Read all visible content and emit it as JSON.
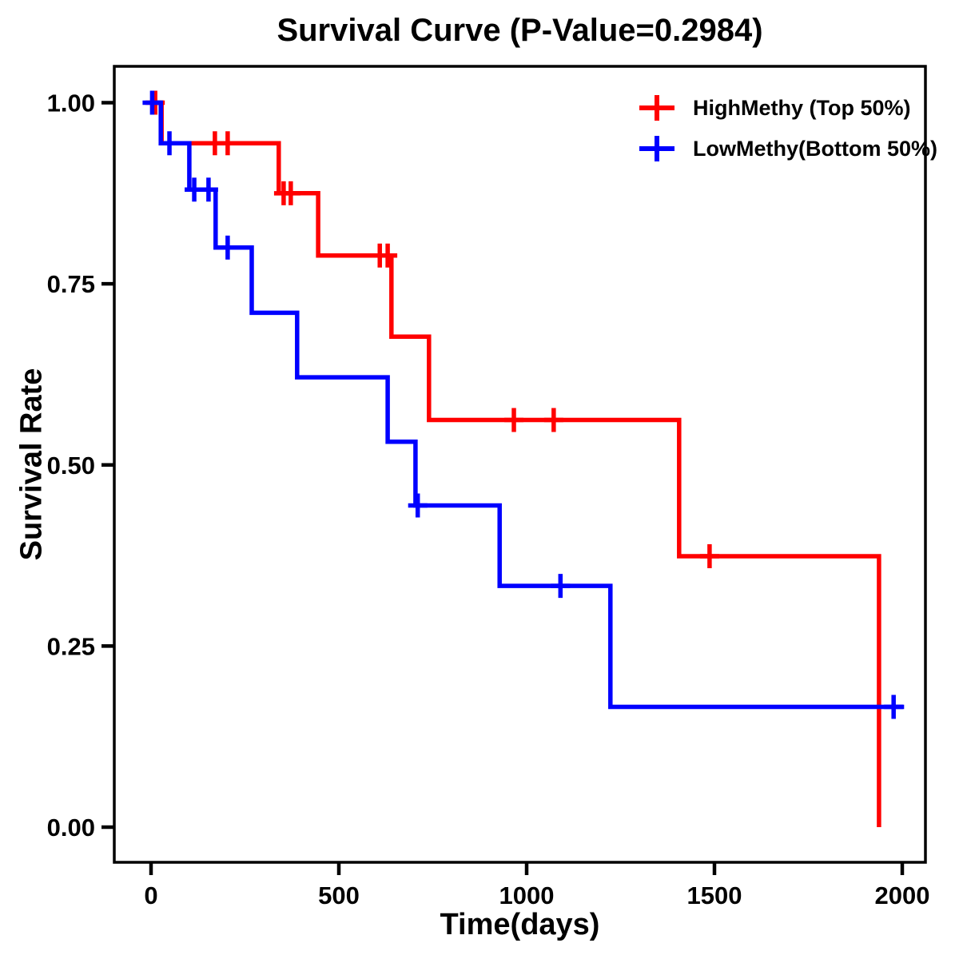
{
  "title": "Survival Curve (P-Value=0.2984)",
  "p_value": "0.2984",
  "chart_data": {
    "type": "line",
    "subtype": "kaplan-meier-step-curves",
    "title": "Survival Curve (P-Value=0.2984)",
    "xlabel": "Time(days)",
    "ylabel": "Survival Rate",
    "xlim": [
      0,
      2000
    ],
    "ylim": [
      0.0,
      1.0
    ],
    "x_ticks": [
      0,
      500,
      1000,
      1500,
      2000
    ],
    "y_ticks": [
      {
        "value": 0.0,
        "label": "0.00"
      },
      {
        "value": 0.25,
        "label": "0.25"
      },
      {
        "value": 0.5,
        "label": "0.50"
      },
      {
        "value": 0.75,
        "label": "0.75"
      },
      {
        "value": 1.0,
        "label": "1.00"
      }
    ],
    "grid": false,
    "legend_position": "top-right",
    "frame_color": "#000000",
    "background_color": "#ffffff",
    "series": [
      {
        "name": "HighMethy (Top 50%)",
        "color": "#ff0000",
        "marker": "plus-censor",
        "steps": [
          [
            0,
            1.0
          ],
          [
            28,
            1.0
          ],
          [
            28,
            0.944
          ],
          [
            340,
            0.944
          ],
          [
            340,
            0.875
          ],
          [
            445,
            0.875
          ],
          [
            445,
            0.789
          ],
          [
            640,
            0.789
          ],
          [
            640,
            0.677
          ],
          [
            740,
            0.677
          ],
          [
            740,
            0.562
          ],
          [
            1406,
            0.562
          ],
          [
            1406,
            0.374
          ],
          [
            1938,
            0.374
          ],
          [
            1938,
            0.0
          ]
        ],
        "censor_marks": [
          [
            11,
            1.0
          ],
          [
            170,
            0.944
          ],
          [
            204,
            0.944
          ],
          [
            353,
            0.875
          ],
          [
            372,
            0.875
          ],
          [
            609,
            0.789
          ],
          [
            630,
            0.789
          ],
          [
            966,
            0.562
          ],
          [
            1072,
            0.562
          ],
          [
            1487,
            0.374
          ]
        ]
      },
      {
        "name": "LowMethy(Bottom 50%)",
        "color": "#0000ff",
        "marker": "plus-censor",
        "steps": [
          [
            0,
            1.0
          ],
          [
            26,
            1.0
          ],
          [
            26,
            0.944
          ],
          [
            102,
            0.944
          ],
          [
            102,
            0.88
          ],
          [
            172,
            0.88
          ],
          [
            172,
            0.8
          ],
          [
            268,
            0.8
          ],
          [
            268,
            0.71
          ],
          [
            389,
            0.71
          ],
          [
            389,
            0.621
          ],
          [
            630,
            0.621
          ],
          [
            630,
            0.532
          ],
          [
            704,
            0.532
          ],
          [
            704,
            0.444
          ],
          [
            928,
            0.444
          ],
          [
            928,
            0.333
          ],
          [
            1223,
            0.333
          ],
          [
            1223,
            0.166
          ],
          [
            2005,
            0.166
          ]
        ],
        "censor_marks": [
          [
            3,
            1.0
          ],
          [
            49,
            0.944
          ],
          [
            115,
            0.88
          ],
          [
            153,
            0.88
          ],
          [
            204,
            0.8
          ],
          [
            710,
            0.444
          ],
          [
            1090,
            0.333
          ],
          [
            1977,
            0.166
          ]
        ]
      }
    ]
  }
}
